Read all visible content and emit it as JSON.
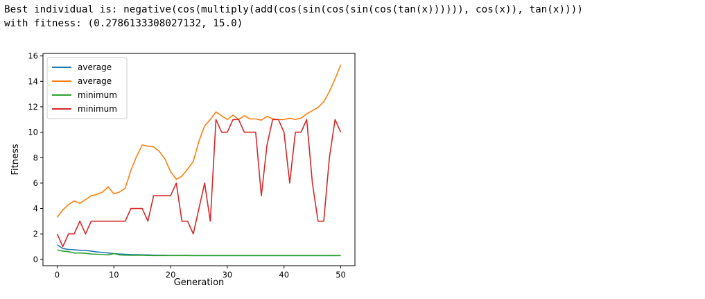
{
  "output": {
    "line1": "Best individual is: negative(cos(multiply(add(cos(sin(cos(sin(cos(tan(x)))))), cos(x)), tan(x))))",
    "line2": "with fitness: (0.2786133308027132, 15.0)"
  },
  "chart_data": {
    "type": "line",
    "title": "",
    "xlabel": "Generation",
    "ylabel": "Fitness",
    "xlim": [
      -2.5,
      52.5
    ],
    "ylim": [
      -0.5,
      16.2
    ],
    "xticks": [
      0,
      10,
      20,
      30,
      40,
      50
    ],
    "yticks": [
      0,
      2,
      4,
      6,
      8,
      10,
      12,
      14,
      16
    ],
    "legend_position": "upper-left",
    "grid": false,
    "x": [
      0,
      1,
      2,
      3,
      4,
      5,
      6,
      7,
      8,
      9,
      10,
      11,
      12,
      13,
      14,
      15,
      16,
      17,
      18,
      19,
      20,
      21,
      22,
      23,
      24,
      25,
      26,
      27,
      28,
      29,
      30,
      31,
      32,
      33,
      34,
      35,
      36,
      37,
      38,
      39,
      40,
      41,
      42,
      43,
      44,
      45,
      46,
      47,
      48,
      49,
      50
    ],
    "series": [
      {
        "name": "average",
        "color": "#1f77b4",
        "values": [
          1.15,
          0.85,
          0.78,
          0.75,
          0.72,
          0.7,
          0.65,
          0.58,
          0.55,
          0.5,
          0.45,
          0.42,
          0.4,
          0.38,
          0.37,
          0.36,
          0.35,
          0.33,
          0.32,
          0.32,
          0.31,
          0.31,
          0.31,
          0.31,
          0.3,
          0.3,
          0.3,
          0.3,
          0.3,
          0.3,
          0.3,
          0.3,
          0.3,
          0.3,
          0.3,
          0.3,
          0.3,
          0.3,
          0.3,
          0.3,
          0.3,
          0.3,
          0.3,
          0.3,
          0.3,
          0.3,
          0.3,
          0.3,
          0.3,
          0.3,
          0.3
        ]
      },
      {
        "name": "average",
        "color": "#ff7f0e",
        "values": [
          3.3,
          3.9,
          4.3,
          4.6,
          4.4,
          4.7,
          5.0,
          5.1,
          5.3,
          5.7,
          5.15,
          5.3,
          5.6,
          7.0,
          8.1,
          9.0,
          8.9,
          8.85,
          8.5,
          7.9,
          6.9,
          6.3,
          6.55,
          7.1,
          7.7,
          9.3,
          10.5,
          11.0,
          11.6,
          11.3,
          11.0,
          11.35,
          11.0,
          11.3,
          11.05,
          11.05,
          10.95,
          11.25,
          11.05,
          11.0,
          11.0,
          11.1,
          11.0,
          11.1,
          11.45,
          11.7,
          11.95,
          12.4,
          13.2,
          14.2,
          15.3
        ]
      },
      {
        "name": "minimum",
        "color": "#2ca02c",
        "values": [
          0.75,
          0.65,
          0.6,
          0.5,
          0.5,
          0.48,
          0.42,
          0.4,
          0.38,
          0.35,
          0.45,
          0.35,
          0.33,
          0.32,
          0.32,
          0.32,
          0.31,
          0.3,
          0.3,
          0.3,
          0.3,
          0.3,
          0.3,
          0.3,
          0.3,
          0.3,
          0.3,
          0.3,
          0.3,
          0.3,
          0.3,
          0.3,
          0.3,
          0.3,
          0.3,
          0.3,
          0.3,
          0.3,
          0.3,
          0.3,
          0.3,
          0.3,
          0.3,
          0.3,
          0.3,
          0.3,
          0.3,
          0.3,
          0.3,
          0.3,
          0.3
        ]
      },
      {
        "name": "minimum",
        "color": "#d62728",
        "values": [
          2,
          1,
          2,
          2,
          3,
          2,
          3,
          3,
          3,
          3,
          3,
          3,
          3,
          4,
          4,
          4,
          3,
          5,
          5,
          5,
          5,
          6,
          3,
          3,
          2,
          4,
          6,
          3,
          11,
          10,
          10,
          11,
          11,
          10,
          10,
          10,
          5,
          9,
          11,
          11,
          10,
          6,
          10,
          10,
          11,
          6,
          3,
          3,
          8,
          11,
          10
        ]
      }
    ]
  }
}
